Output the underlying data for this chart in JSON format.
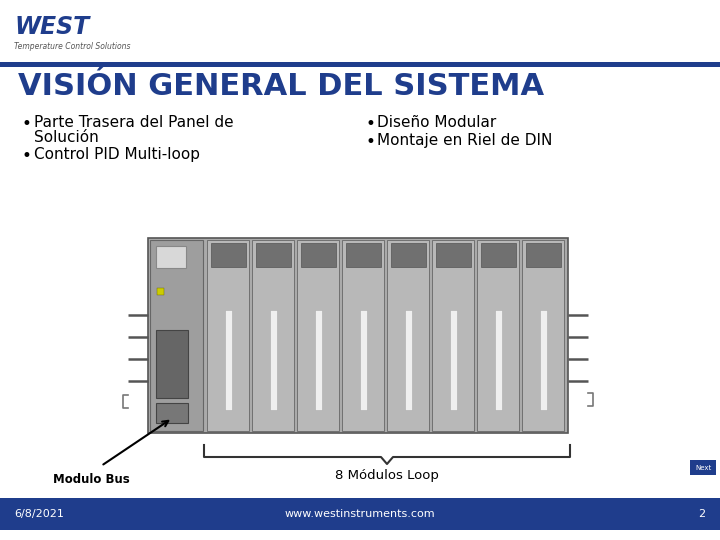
{
  "bg_color": "#ffffff",
  "header_bar_color": "#1f3d8c",
  "footer_bar_color": "#1f3d8c",
  "title_text": "VISIÓN GENERAL DEL SISTEMA",
  "title_color": "#1f3d8c",
  "title_fontsize": 22,
  "bullet_color": "#000000",
  "bullet_fontsize": 11,
  "footer_date": "6/8/2021",
  "footer_url": "www.westinstruments.com",
  "footer_page": "2",
  "footer_fontsize": 8,
  "footer_text_color": "#ffffff",
  "logo_west_color": "#1f3d8c",
  "module_label": "Modulo Bus",
  "loop_label": "8 Módulos Loop",
  "next_label": "Next"
}
